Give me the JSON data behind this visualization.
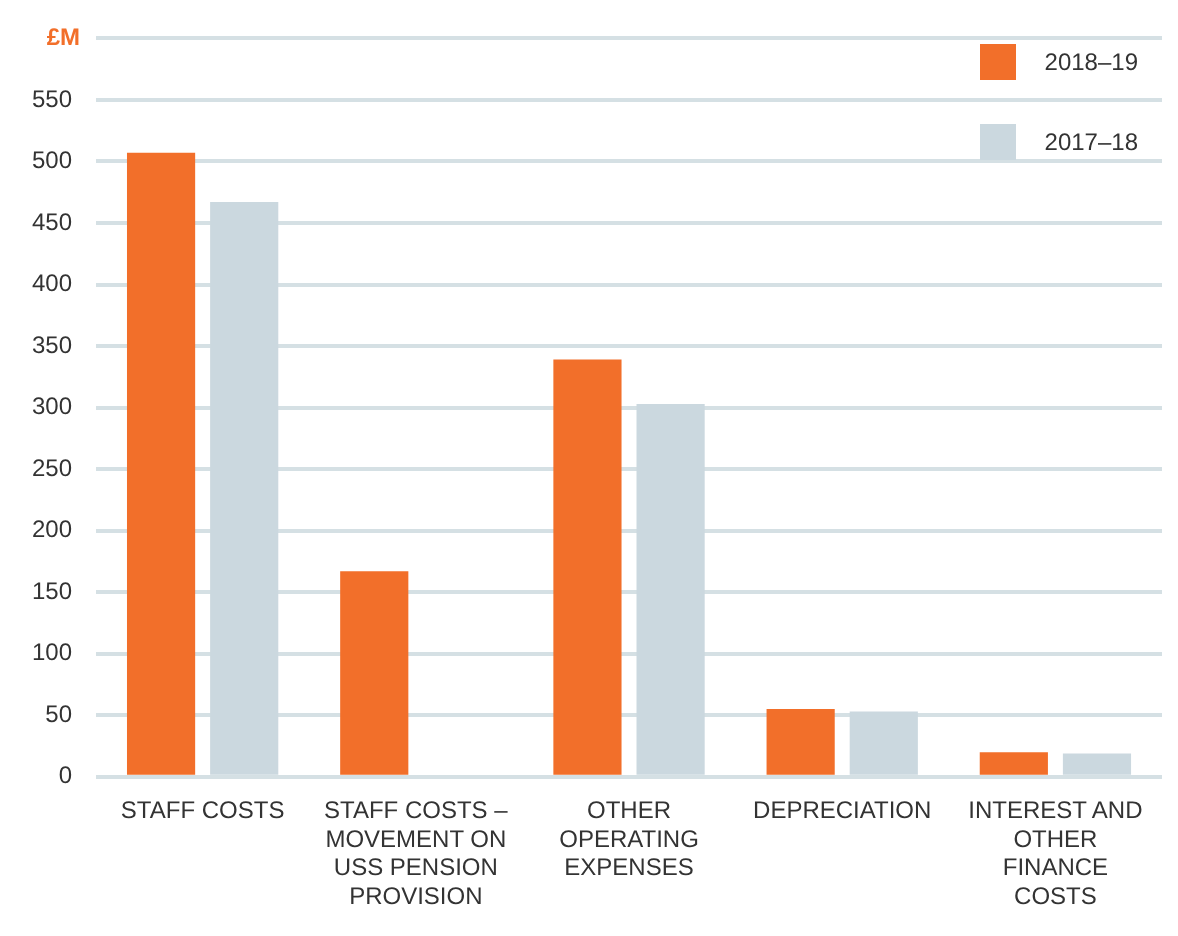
{
  "chart_data": {
    "type": "bar",
    "ylabel": "£M",
    "categories": [
      "STAFF COSTS",
      "STAFF COSTS – MOVEMENT ON USS PENSION PROVISION",
      "OTHER OPERATING EXPENSES",
      "DEPRECIATION",
      "INTEREST AND OTHER FINANCE COSTS"
    ],
    "series": [
      {
        "name": "2018–19",
        "color": "#f26f2a",
        "values": [
          507,
          167,
          339,
          55,
          20
        ]
      },
      {
        "name": "2017–18",
        "color": "#cbd8df",
        "values": [
          467,
          null,
          303,
          53,
          19
        ]
      }
    ],
    "ylim": [
      0,
      600
    ],
    "yticks": [
      0,
      50,
      100,
      150,
      200,
      250,
      300,
      350,
      400,
      450,
      500,
      550,
      {
        "value": 600,
        "label": null
      }
    ],
    "grid": "y",
    "legend": "top right"
  }
}
